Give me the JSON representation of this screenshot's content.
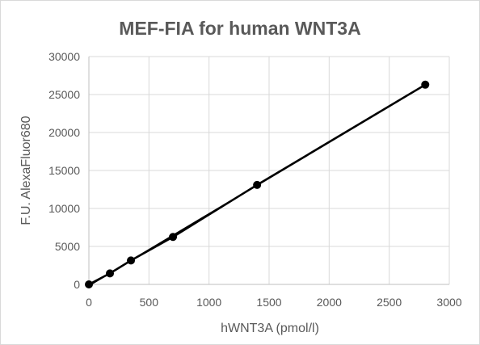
{
  "chart_data": {
    "type": "scatter",
    "title": "MEF-FIA for human WNT3A",
    "xlabel": "hWNT3A (pmol/l)",
    "ylabel": "F.U. AlexaFluor680",
    "xlim": [
      0,
      3000
    ],
    "ylim": [
      0,
      30000
    ],
    "x_ticks": [
      0,
      500,
      1000,
      1500,
      2000,
      2500,
      3000
    ],
    "y_ticks": [
      0,
      5000,
      10000,
      15000,
      20000,
      25000,
      30000
    ],
    "grid": true,
    "legend": "none",
    "series": [
      {
        "x": [
          0,
          175,
          350,
          700,
          1400,
          2800
        ],
        "y": [
          0,
          1450,
          3150,
          6250,
          13100,
          26300
        ],
        "color": "#000000",
        "marker": "circle",
        "trendline": "linear"
      }
    ]
  }
}
